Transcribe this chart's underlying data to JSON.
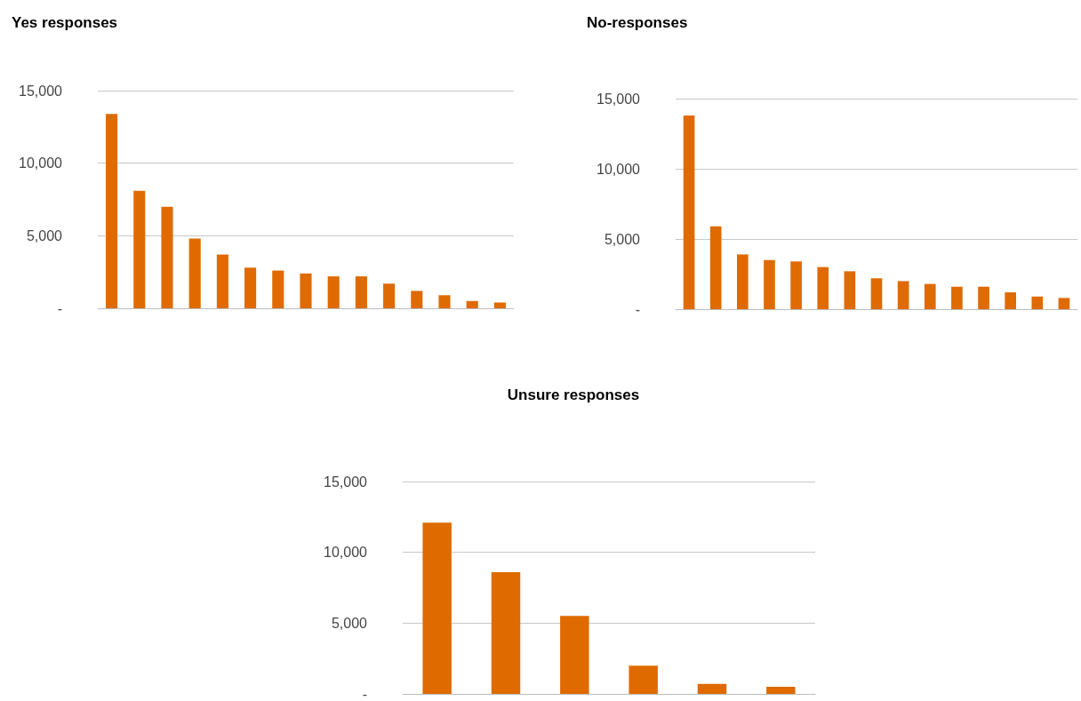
{
  "chart_data": [
    {
      "type": "bar",
      "title": "Yes responses",
      "categories": [
        null,
        null,
        null,
        null,
        null,
        null,
        null,
        null,
        null,
        null,
        null,
        null,
        null,
        null,
        null
      ],
      "values": [
        13400,
        8100,
        7000,
        4800,
        3700,
        2800,
        2600,
        2400,
        2200,
        2200,
        1700,
        1200,
        900,
        500,
        400
      ],
      "color": "#df6a00",
      "ylim": [
        0,
        15000
      ],
      "yticks": [
        {
          "value": 0,
          "label": "-"
        },
        {
          "value": 5000,
          "label": "5,000"
        },
        {
          "value": 10000,
          "label": "10,000"
        },
        {
          "value": 15000,
          "label": "15,000"
        }
      ],
      "grid": "y",
      "tick_labels": "y"
    },
    {
      "type": "bar",
      "title": "No-responses",
      "categories": [
        null,
        null,
        null,
        null,
        null,
        null,
        null,
        null,
        null,
        null,
        null,
        null,
        null,
        null,
        null
      ],
      "values": [
        13800,
        5900,
        3900,
        3500,
        3400,
        3000,
        2700,
        2200,
        2000,
        1800,
        1600,
        1600,
        1200,
        900,
        800
      ],
      "color": "#df6a00",
      "ylim": [
        0,
        15000
      ],
      "yticks": [
        {
          "value": 0,
          "label": "-"
        },
        {
          "value": 5000,
          "label": "5,000"
        },
        {
          "value": 10000,
          "label": "10,000"
        },
        {
          "value": 15000,
          "label": "15,000"
        }
      ],
      "grid": "y",
      "tick_labels": "y"
    },
    {
      "type": "bar",
      "title": "Unsure responses",
      "categories": [
        null,
        null,
        null,
        null,
        null,
        null
      ],
      "values": [
        12100,
        8600,
        5500,
        2000,
        700,
        500
      ],
      "color": "#df6a00",
      "ylim": [
        0,
        15000
      ],
      "yticks": [
        {
          "value": 0,
          "label": "-"
        },
        {
          "value": 5000,
          "label": "5,000"
        },
        {
          "value": 10000,
          "label": "10,000"
        },
        {
          "value": 15000,
          "label": "15,000"
        }
      ],
      "grid": "y",
      "tick_labels": "y"
    }
  ]
}
